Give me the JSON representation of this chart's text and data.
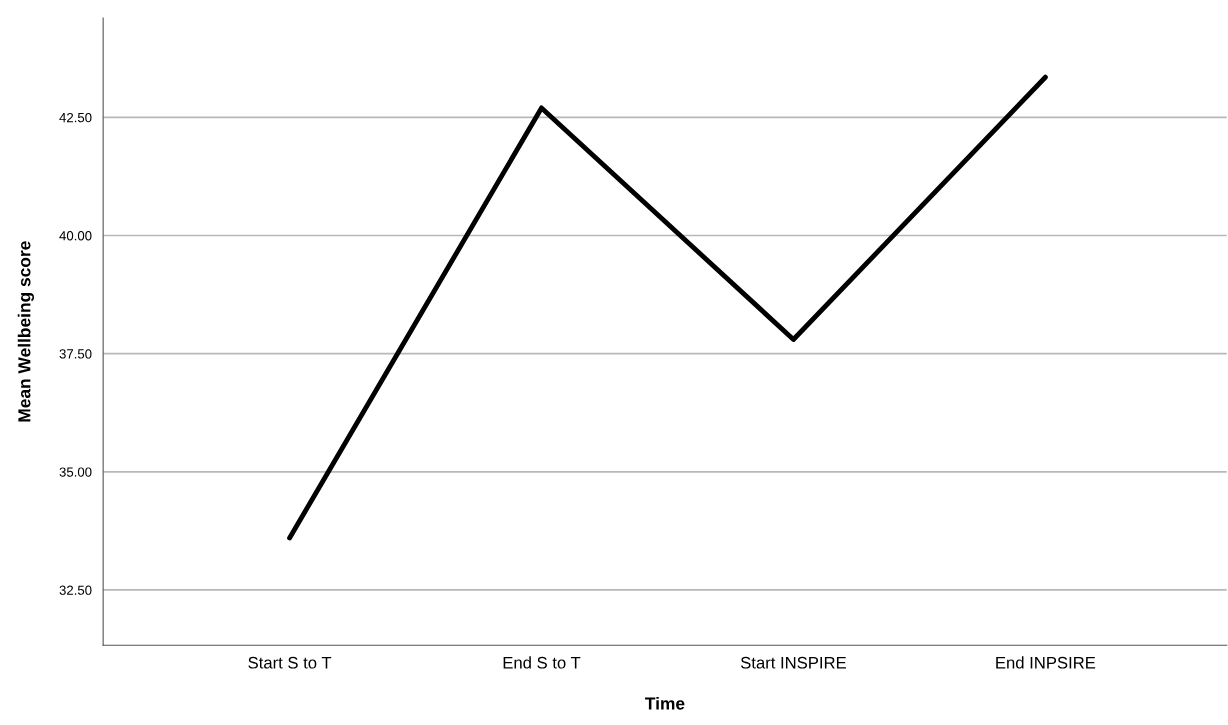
{
  "chart_data": {
    "type": "line",
    "xlabel": "Time",
    "ylabel": "Mean Wellbeing score",
    "categories": [
      "Start S to T",
      "End S to T",
      "Start INSPIRE",
      "End INPSIRE"
    ],
    "series": [
      {
        "color": "#000000",
        "values": [
          33.6,
          42.7,
          37.8,
          43.35
        ]
      }
    ],
    "ylim": [
      31.33,
      44.6
    ],
    "yticks": [
      {
        "value": 32.5,
        "label": "32.50"
      },
      {
        "value": 35,
        "label": "35.00"
      },
      {
        "value": 37.5,
        "label": "37.50"
      },
      {
        "value": 40,
        "label": "40.00"
      },
      {
        "value": 42.5,
        "label": "42.50"
      }
    ],
    "grid": "y",
    "marker": "none",
    "line_style": "solid"
  }
}
